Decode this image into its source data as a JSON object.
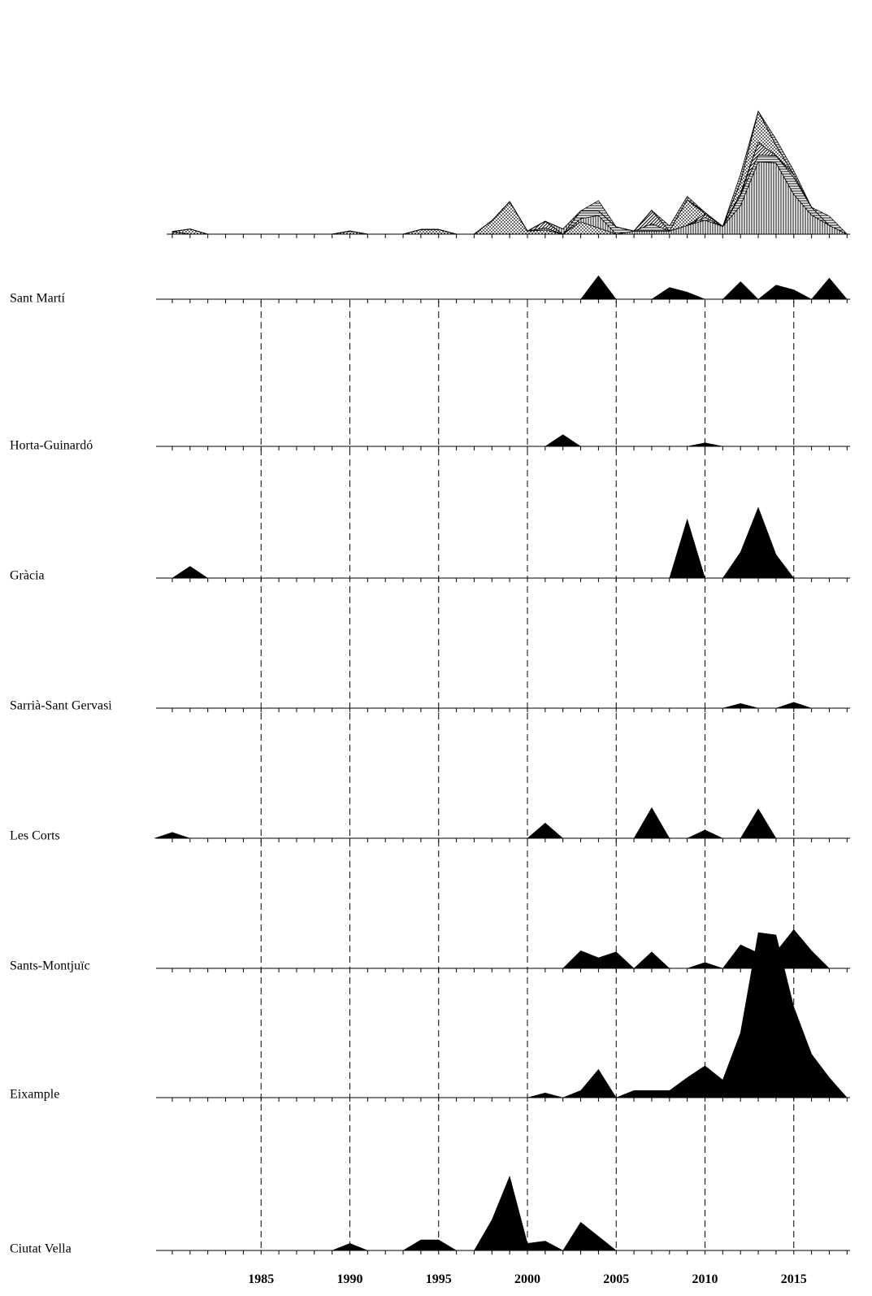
{
  "chart_data": {
    "type": "area",
    "x_start": 1980,
    "x_end": 2018,
    "x_ticks_labeled": [
      1985,
      1990,
      1995,
      2000,
      2005,
      2010,
      2015
    ],
    "grid": "vertical dashed lines at labeled years",
    "colors": {
      "fill": "#000000",
      "axis": "#000000"
    },
    "stacked_total": {
      "note": "combined stacked area of all districts",
      "patterns": [
        "dots",
        "vertical-lines",
        "horizontal-lines",
        "diagonal-lines",
        "white"
      ]
    },
    "series": [
      {
        "name": "Sant Martí",
        "points": [
          [
            2003,
            0
          ],
          [
            2004,
            2
          ],
          [
            2005,
            0
          ],
          [
            2006,
            0
          ],
          [
            2007,
            0
          ],
          [
            2008,
            1
          ],
          [
            2009,
            0.6
          ],
          [
            2010,
            0
          ],
          [
            2011,
            0
          ],
          [
            2012,
            1.5
          ],
          [
            2013,
            0
          ],
          [
            2014,
            1.2
          ],
          [
            2015,
            0.8
          ],
          [
            2016,
            0
          ],
          [
            2017,
            1.8
          ],
          [
            2018,
            0
          ]
        ]
      },
      {
        "name": "Horta-Guinardó",
        "points": [
          [
            2001,
            0
          ],
          [
            2002,
            1
          ],
          [
            2003,
            0
          ],
          [
            2009,
            0
          ],
          [
            2010,
            0.3
          ],
          [
            2011,
            0
          ]
        ]
      },
      {
        "name": "Gràcia",
        "points": [
          [
            1980,
            0
          ],
          [
            1981,
            1
          ],
          [
            1982,
            0
          ],
          [
            2008,
            0
          ],
          [
            2009,
            5
          ],
          [
            2010,
            0
          ],
          [
            2011,
            0
          ],
          [
            2012,
            2.2
          ],
          [
            2013,
            6
          ],
          [
            2014,
            2
          ],
          [
            2015,
            0
          ]
        ]
      },
      {
        "name": "Sarrià-Sant Gervasi",
        "points": [
          [
            2011,
            0
          ],
          [
            2012,
            0.4
          ],
          [
            2013,
            0
          ],
          [
            2014,
            0
          ],
          [
            2015,
            0.5
          ],
          [
            2016,
            0
          ]
        ]
      },
      {
        "name": "Les Corts",
        "points": [
          [
            1979,
            0
          ],
          [
            1980,
            0.5
          ],
          [
            1981,
            0
          ],
          [
            2000,
            0
          ],
          [
            2001,
            1.3
          ],
          [
            2002,
            0
          ],
          [
            2006,
            0
          ],
          [
            2007,
            2.6
          ],
          [
            2008,
            0
          ],
          [
            2009,
            0
          ],
          [
            2010,
            0.7
          ],
          [
            2011,
            0
          ],
          [
            2012,
            0
          ],
          [
            2013,
            2.5
          ],
          [
            2014,
            0
          ]
        ]
      },
      {
        "name": "Sants-Montjuïc",
        "points": [
          [
            2002,
            0
          ],
          [
            2003,
            1.5
          ],
          [
            2004,
            0.9
          ],
          [
            2005,
            1.4
          ],
          [
            2006,
            0
          ],
          [
            2007,
            1.4
          ],
          [
            2008,
            0
          ],
          [
            2009,
            0
          ],
          [
            2010,
            0.5
          ],
          [
            2011,
            0
          ],
          [
            2012,
            2
          ],
          [
            2013,
            1.3
          ],
          [
            2014,
            1.4
          ],
          [
            2015,
            3.3
          ],
          [
            2016,
            1.5
          ],
          [
            2017,
            0
          ]
        ]
      },
      {
        "name": "Eixample",
        "points": [
          [
            2000,
            0
          ],
          [
            2001,
            0.4
          ],
          [
            2002,
            0
          ],
          [
            2003,
            0.6
          ],
          [
            2004,
            2.4
          ],
          [
            2005,
            0
          ],
          [
            2006,
            0.6
          ],
          [
            2007,
            0.6
          ],
          [
            2008,
            0.6
          ],
          [
            2009,
            1.7
          ],
          [
            2010,
            2.7
          ],
          [
            2011,
            1.5
          ],
          [
            2012,
            5.5
          ],
          [
            2013,
            14
          ],
          [
            2014,
            13.8
          ],
          [
            2015,
            7.7
          ],
          [
            2016,
            3.7
          ],
          [
            2017,
            1.7
          ],
          [
            2018,
            0
          ]
        ]
      },
      {
        "name": "Ciutat Vella",
        "points": [
          [
            1989,
            0
          ],
          [
            1990,
            0.6
          ],
          [
            1991,
            0
          ],
          [
            1993,
            0
          ],
          [
            1994,
            0.9
          ],
          [
            1995,
            0.9
          ],
          [
            1996,
            0
          ],
          [
            1997,
            0
          ],
          [
            1998,
            2.6
          ],
          [
            1999,
            6.3
          ],
          [
            2000,
            0.6
          ],
          [
            2001,
            0.8
          ],
          [
            2002,
            0
          ],
          [
            2003,
            2.4
          ],
          [
            2004,
            1.2
          ],
          [
            2005,
            0
          ]
        ]
      }
    ]
  }
}
